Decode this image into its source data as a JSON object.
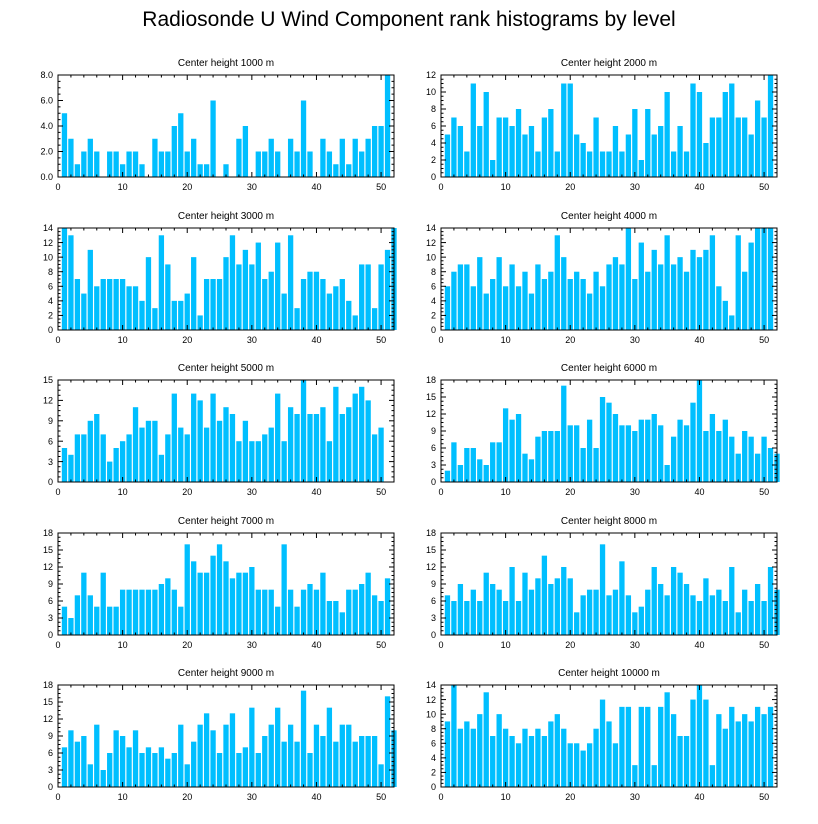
{
  "title": "Radiosonde U Wind Component rank histograms by level",
  "colors": {
    "bar": "#00BFFF",
    "axis": "#000000",
    "background": "#FFFFFF"
  },
  "chart_data": [
    {
      "type": "bar",
      "title": "Center height 1000 m",
      "xlim": [
        0,
        52
      ],
      "xticks": [
        0,
        10,
        20,
        30,
        40,
        50
      ],
      "ylim": [
        0,
        8
      ],
      "yticks": [
        0,
        2,
        4,
        6,
        8
      ],
      "ytick_labels": [
        "0.0",
        "2.0",
        "4.0",
        "6.0",
        "8.0"
      ],
      "values": [
        5,
        3,
        1,
        2,
        3,
        2,
        0,
        2,
        2,
        1,
        2,
        2,
        1,
        0,
        3,
        2,
        2,
        4,
        5,
        2,
        3,
        1,
        1,
        6,
        0,
        1,
        0,
        3,
        4,
        0,
        2,
        2,
        3,
        2,
        0,
        3,
        2,
        6,
        2,
        0,
        3,
        2,
        1,
        3,
        1,
        3,
        2,
        3,
        4,
        4,
        8
      ]
    },
    {
      "type": "bar",
      "title": "Center height 2000 m",
      "xlim": [
        0,
        52
      ],
      "xticks": [
        0,
        10,
        20,
        30,
        40,
        50
      ],
      "ylim": [
        0,
        12
      ],
      "yticks": [
        0,
        2,
        4,
        6,
        8,
        10,
        12
      ],
      "ytick_labels": [
        "0",
        "2",
        "4",
        "6",
        "8",
        "10",
        "12"
      ],
      "values": [
        5,
        7,
        6,
        3,
        11,
        6,
        10,
        2,
        7,
        7,
        6,
        8,
        5,
        6,
        3,
        7,
        8,
        3,
        11,
        11,
        5,
        4,
        3,
        7,
        3,
        3,
        6,
        3,
        5,
        8,
        2,
        8,
        5,
        6,
        10,
        3,
        6,
        3,
        11,
        10,
        4,
        7,
        7,
        10,
        11,
        7,
        7,
        5,
        9,
        7,
        12
      ]
    },
    {
      "type": "bar",
      "title": "Center height 3000 m",
      "xlim": [
        0,
        52
      ],
      "xticks": [
        0,
        10,
        20,
        30,
        40,
        50
      ],
      "ylim": [
        0,
        14
      ],
      "yticks": [
        0,
        2,
        4,
        6,
        8,
        10,
        12,
        14
      ],
      "ytick_labels": [
        "0",
        "2",
        "4",
        "6",
        "8",
        "10",
        "12",
        "14"
      ],
      "values": [
        14,
        13,
        7,
        5,
        11,
        6,
        7,
        7,
        7,
        7,
        6,
        6,
        4,
        10,
        3,
        13,
        9,
        4,
        4,
        5,
        10,
        2,
        7,
        7,
        7,
        10,
        13,
        9,
        11,
        9,
        12,
        7,
        8,
        12,
        5,
        13,
        3,
        7,
        8,
        8,
        7,
        5,
        6,
        7,
        4,
        2,
        9,
        9,
        3,
        9,
        11,
        14
      ]
    },
    {
      "type": "bar",
      "title": "Center height 4000 m",
      "xlim": [
        0,
        52
      ],
      "xticks": [
        0,
        10,
        20,
        30,
        40,
        50
      ],
      "ylim": [
        0,
        14
      ],
      "yticks": [
        0,
        2,
        4,
        6,
        8,
        10,
        12,
        14
      ],
      "ytick_labels": [
        "0",
        "2",
        "4",
        "6",
        "8",
        "10",
        "12",
        "14"
      ],
      "values": [
        6,
        8,
        9,
        9,
        6,
        10,
        5,
        7,
        10,
        6,
        9,
        6,
        8,
        5,
        9,
        7,
        8,
        13,
        10,
        7,
        8,
        7,
        5,
        8,
        6,
        9,
        10,
        9,
        14,
        7,
        12,
        8,
        11,
        9,
        13,
        9,
        10,
        8,
        11,
        10,
        11,
        13,
        6,
        4,
        2,
        13,
        8,
        12,
        14,
        14,
        14
      ]
    },
    {
      "type": "bar",
      "title": "Center height 5000 m",
      "xlim": [
        0,
        52
      ],
      "xticks": [
        0,
        10,
        20,
        30,
        40,
        50
      ],
      "ylim": [
        0,
        15
      ],
      "yticks": [
        0,
        3,
        6,
        9,
        12,
        15
      ],
      "ytick_labels": [
        "0",
        "3",
        "6",
        "9",
        "12",
        "15"
      ],
      "values": [
        5,
        4,
        7,
        7,
        9,
        10,
        7,
        3,
        5,
        6,
        7,
        11,
        8,
        9,
        9,
        4,
        7,
        13,
        8,
        7,
        13,
        12,
        8,
        13,
        9,
        11,
        10,
        6,
        9,
        6,
        6,
        7,
        8,
        13,
        6,
        11,
        10,
        15,
        10,
        10,
        11,
        6,
        14,
        10,
        11,
        13,
        14,
        12,
        7,
        8
      ]
    },
    {
      "type": "bar",
      "title": "Center height 6000 m",
      "xlim": [
        0,
        52
      ],
      "xticks": [
        0,
        10,
        20,
        30,
        40,
        50
      ],
      "ylim": [
        0,
        18
      ],
      "yticks": [
        0,
        3,
        6,
        9,
        12,
        15,
        18
      ],
      "ytick_labels": [
        "0",
        "3",
        "6",
        "9",
        "12",
        "15",
        "18"
      ],
      "values": [
        2,
        7,
        3,
        6,
        6,
        4,
        3,
        7,
        7,
        13,
        11,
        12,
        5,
        4,
        8,
        9,
        9,
        9,
        17,
        10,
        10,
        6,
        11,
        6,
        15,
        14,
        12,
        10,
        10,
        9,
        11,
        11,
        12,
        10,
        3,
        8,
        11,
        10,
        14,
        18,
        9,
        12,
        9,
        11,
        8,
        5,
        9,
        8,
        5,
        8,
        6,
        5
      ]
    },
    {
      "type": "bar",
      "title": "Center height 7000 m",
      "xlim": [
        0,
        52
      ],
      "xticks": [
        0,
        10,
        20,
        30,
        40,
        50
      ],
      "ylim": [
        0,
        18
      ],
      "yticks": [
        0,
        3,
        6,
        9,
        12,
        15,
        18
      ],
      "ytick_labels": [
        "0",
        "3",
        "6",
        "9",
        "12",
        "15",
        "18"
      ],
      "values": [
        5,
        3,
        7,
        11,
        7,
        5,
        11,
        5,
        5,
        8,
        8,
        8,
        8,
        8,
        8,
        9,
        10,
        8,
        5,
        16,
        13,
        11,
        11,
        14,
        16,
        13,
        10,
        11,
        11,
        12,
        8,
        8,
        8,
        5,
        16,
        8,
        5,
        8,
        9,
        8,
        11,
        6,
        6,
        4,
        8,
        8,
        9,
        11,
        7,
        6,
        10
      ]
    },
    {
      "type": "bar",
      "title": "Center height 8000 m",
      "xlim": [
        0,
        52
      ],
      "xticks": [
        0,
        10,
        20,
        30,
        40,
        50
      ],
      "ylim": [
        0,
        18
      ],
      "yticks": [
        0,
        3,
        6,
        9,
        12,
        15,
        18
      ],
      "ytick_labels": [
        "0",
        "3",
        "6",
        "9",
        "12",
        "15",
        "18"
      ],
      "values": [
        7,
        6,
        9,
        6,
        8,
        6,
        11,
        9,
        8,
        6,
        12,
        6,
        11,
        8,
        10,
        14,
        9,
        10,
        12,
        10,
        4,
        7,
        8,
        8,
        16,
        7,
        8,
        13,
        7,
        4,
        5,
        8,
        12,
        9,
        7,
        12,
        11,
        9,
        7,
        6,
        10,
        7,
        8,
        6,
        12,
        4,
        8,
        6,
        9,
        6,
        12,
        8
      ]
    },
    {
      "type": "bar",
      "title": "Center height 9000 m",
      "xlim": [
        0,
        52
      ],
      "xticks": [
        0,
        10,
        20,
        30,
        40,
        50
      ],
      "ylim": [
        0,
        18
      ],
      "yticks": [
        0,
        3,
        6,
        9,
        12,
        15,
        18
      ],
      "ytick_labels": [
        "0",
        "3",
        "6",
        "9",
        "12",
        "15",
        "18"
      ],
      "values": [
        7,
        10,
        8,
        9,
        4,
        11,
        3,
        6,
        10,
        9,
        7,
        10,
        6,
        7,
        6,
        7,
        5,
        6,
        11,
        4,
        8,
        11,
        13,
        10,
        6,
        11,
        13,
        6,
        7,
        14,
        6,
        9,
        11,
        14,
        8,
        11,
        8,
        17,
        6,
        11,
        9,
        14,
        8,
        11,
        11,
        8,
        9,
        9,
        9,
        4,
        16,
        10
      ]
    },
    {
      "type": "bar",
      "title": "Center height 10000 m",
      "xlim": [
        0,
        52
      ],
      "xticks": [
        0,
        10,
        20,
        30,
        40,
        50
      ],
      "ylim": [
        0,
        14
      ],
      "yticks": [
        0,
        2,
        4,
        6,
        8,
        10,
        12,
        14
      ],
      "ytick_labels": [
        "0",
        "2",
        "4",
        "6",
        "8",
        "10",
        "12",
        "14"
      ],
      "values": [
        9,
        14,
        8,
        9,
        8,
        10,
        13,
        7,
        10,
        8,
        7,
        6,
        8,
        7,
        8,
        7,
        9,
        10,
        8,
        6,
        6,
        5,
        6,
        8,
        12,
        9,
        6,
        11,
        11,
        3,
        11,
        11,
        3,
        11,
        13,
        10,
        7,
        7,
        12,
        14,
        12,
        3,
        10,
        8,
        11,
        9,
        10,
        9,
        11,
        10,
        11
      ]
    }
  ]
}
